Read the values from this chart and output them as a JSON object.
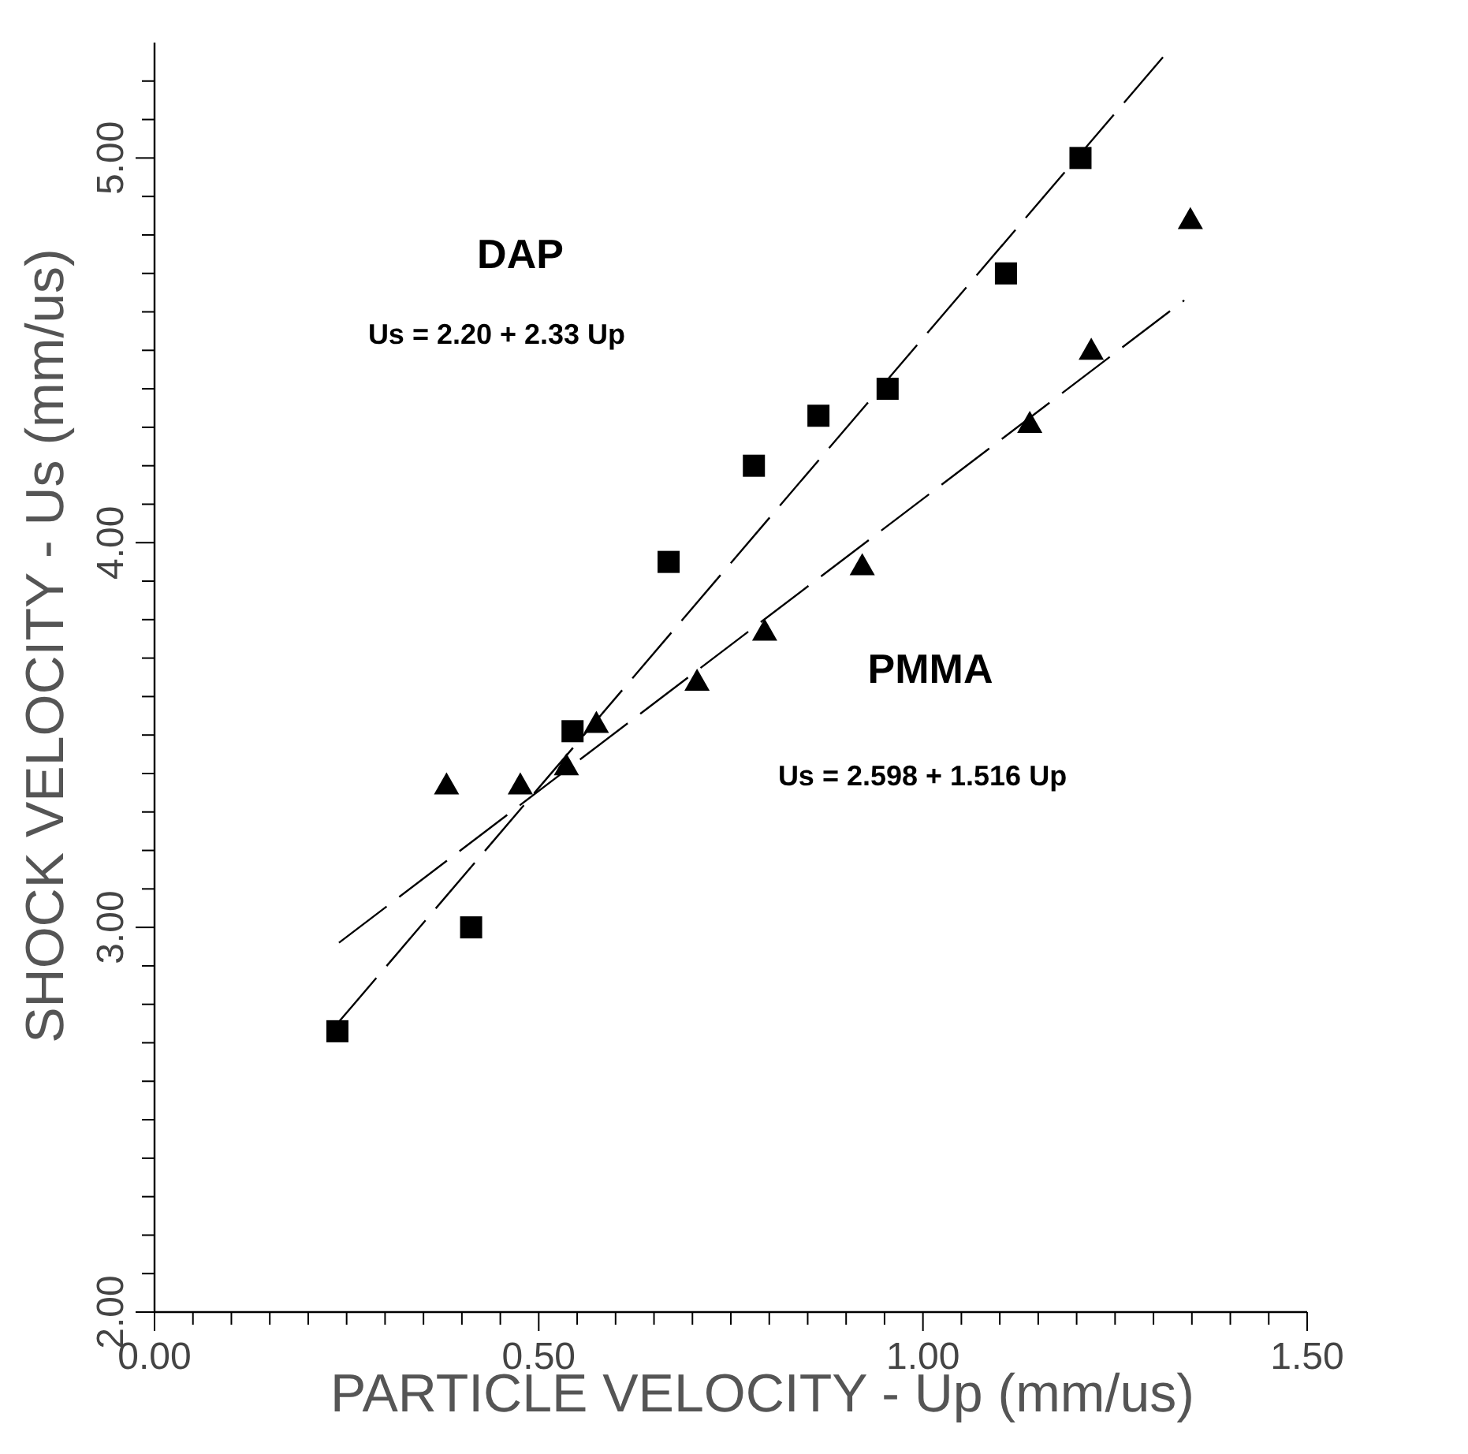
{
  "chart_data": {
    "type": "scatter",
    "xlabel": "PARTICLE VELOCITY - Up (mm/us)",
    "ylabel": "SHOCK VELOCITY - Us (mm/us)",
    "xlim": [
      0,
      1.5
    ],
    "ylim": [
      2,
      5.3
    ],
    "xticks": [
      {
        "value": 0,
        "label": "0.00"
      },
      {
        "value": 0.05,
        "label": null
      },
      {
        "value": 0.1,
        "label": null
      },
      {
        "value": 0.15,
        "label": null
      },
      {
        "value": 0.2,
        "label": null
      },
      {
        "value": 0.25,
        "label": null
      },
      {
        "value": 0.3,
        "label": null
      },
      {
        "value": 0.35,
        "label": null
      },
      {
        "value": 0.4,
        "label": null
      },
      {
        "value": 0.45,
        "label": null
      },
      {
        "value": 0.5,
        "label": "0.50"
      },
      {
        "value": 0.55,
        "label": null
      },
      {
        "value": 0.6,
        "label": null
      },
      {
        "value": 0.65,
        "label": null
      },
      {
        "value": 0.7,
        "label": null
      },
      {
        "value": 0.75,
        "label": null
      },
      {
        "value": 0.8,
        "label": null
      },
      {
        "value": 0.85,
        "label": null
      },
      {
        "value": 0.9,
        "label": null
      },
      {
        "value": 0.95,
        "label": null
      },
      {
        "value": 1,
        "label": "1.00"
      },
      {
        "value": 1.05,
        "label": null
      },
      {
        "value": 1.1,
        "label": null
      },
      {
        "value": 1.15,
        "label": null
      },
      {
        "value": 1.2,
        "label": null
      },
      {
        "value": 1.25,
        "label": null
      },
      {
        "value": 1.3,
        "label": null
      },
      {
        "value": 1.35,
        "label": null
      },
      {
        "value": 1.4,
        "label": null
      },
      {
        "value": 1.45,
        "label": null
      },
      {
        "value": 1.5,
        "label": "1.50"
      }
    ],
    "yticks": [
      {
        "value": 2,
        "label": "2.00"
      },
      {
        "value": 2.1,
        "label": null
      },
      {
        "value": 2.2,
        "label": null
      },
      {
        "value": 2.3,
        "label": null
      },
      {
        "value": 2.4,
        "label": null
      },
      {
        "value": 2.5,
        "label": null
      },
      {
        "value": 2.6,
        "label": null
      },
      {
        "value": 2.7,
        "label": null
      },
      {
        "value": 2.8,
        "label": null
      },
      {
        "value": 2.9,
        "label": null
      },
      {
        "value": 3,
        "label": "3.00"
      },
      {
        "value": 3.1,
        "label": null
      },
      {
        "value": 3.2,
        "label": null
      },
      {
        "value": 3.3,
        "label": null
      },
      {
        "value": 3.4,
        "label": null
      },
      {
        "value": 3.5,
        "label": null
      },
      {
        "value": 3.6,
        "label": null
      },
      {
        "value": 3.7,
        "label": null
      },
      {
        "value": 3.8,
        "label": null
      },
      {
        "value": 3.9,
        "label": null
      },
      {
        "value": 4,
        "label": "4.00"
      },
      {
        "value": 4.1,
        "label": null
      },
      {
        "value": 4.2,
        "label": null
      },
      {
        "value": 4.3,
        "label": null
      },
      {
        "value": 4.4,
        "label": null
      },
      {
        "value": 4.5,
        "label": null
      },
      {
        "value": 4.6,
        "label": null
      },
      {
        "value": 4.7,
        "label": null
      },
      {
        "value": 4.8,
        "label": null
      },
      {
        "value": 4.9,
        "label": null
      },
      {
        "value": 5,
        "label": "5.00"
      },
      {
        "value": 5.1,
        "label": null
      },
      {
        "value": 5.2,
        "label": null
      }
    ],
    "grid": false,
    "series": [
      {
        "marker": "square",
        "color": "#000000",
        "x": [
          0.238,
          0.412,
          0.544,
          0.669,
          0.78,
          0.864,
          0.954,
          1.108,
          1.205
        ],
        "values": [
          2.73,
          3.0,
          3.51,
          3.95,
          4.2,
          4.33,
          4.4,
          4.7,
          5.0
        ]
      },
      {
        "marker": "triangle",
        "color": "#000000",
        "x": [
          0.38,
          0.476,
          0.536,
          0.575,
          0.706,
          0.794,
          0.921,
          1.139,
          1.219,
          1.348
        ],
        "values": [
          3.37,
          3.37,
          3.42,
          3.53,
          3.64,
          3.77,
          3.94,
          4.31,
          4.5,
          4.84
        ]
      },
      {
        "type": "line",
        "marker": "none",
        "line_style": "dashed",
        "color": "#000000",
        "x": [
          0.238,
          1.32
        ],
        "values": [
          2.75,
          5.28
        ]
      },
      {
        "type": "line",
        "marker": "none",
        "line_style": "dashed",
        "color": "#000000",
        "x": [
          0.24,
          1.34
        ],
        "values": [
          2.96,
          4.63
        ]
      }
    ],
    "annotations": [
      "DAP",
      "Us = 2.20 + 2.33 Up",
      "PMMA",
      "Us = 2.598 + 1.516 Up"
    ]
  }
}
